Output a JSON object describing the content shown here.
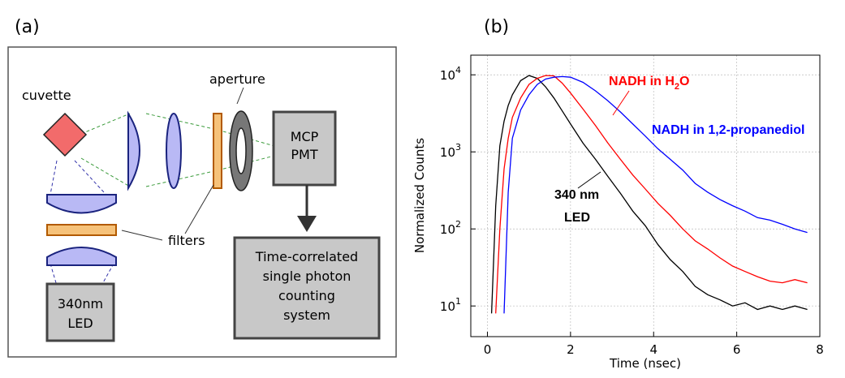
{
  "panels": [
    "(a)",
    "(b)"
  ],
  "diagram": {
    "cuvette": "cuvette",
    "aperture": "aperture",
    "filters": "filters",
    "pmt": [
      "MCP",
      "PMT"
    ],
    "led": [
      "340nm",
      "LED"
    ],
    "tcspc": [
      "Time-correlated",
      "single photon",
      "counting",
      "system"
    ]
  },
  "chart_data": {
    "type": "line",
    "y_label": "Normalized Counts",
    "x_label": "Time (nsec)",
    "log_y": true,
    "grid": true,
    "xlim": [
      -0.4,
      8
    ],
    "xticks": [
      0,
      2,
      4,
      6,
      8
    ],
    "ylim": [
      4,
      18000
    ],
    "yticks": [
      {
        "value": 10,
        "label": "10",
        "exponent": "1"
      },
      {
        "value": 100,
        "label": "10",
        "exponent": "2"
      },
      {
        "value": 1000,
        "label": "10",
        "exponent": "3"
      },
      {
        "value": 10000,
        "label": "10",
        "exponent": "4"
      }
    ],
    "x": [
      0.1,
      0.2,
      0.3,
      0.4,
      0.5,
      0.6,
      0.8,
      1.0,
      1.2,
      1.4,
      1.6,
      1.8,
      2.0,
      2.3,
      2.6,
      2.9,
      3.2,
      3.5,
      3.8,
      4.1,
      4.4,
      4.7,
      5.0,
      5.3,
      5.6,
      5.9,
      6.2,
      6.5,
      6.8,
      7.1,
      7.4,
      7.7
    ],
    "series": [
      {
        "color": "#000000",
        "values": [
          8,
          200,
          1200,
          2500,
          4000,
          5500,
          8400,
          9800,
          9000,
          7000,
          5000,
          3400,
          2300,
          1300,
          800,
          480,
          290,
          170,
          110,
          63,
          40,
          28,
          18,
          14,
          12,
          10,
          11,
          9,
          10,
          9,
          10,
          9
        ]
      },
      {
        "color": "#ff0000",
        "values": [
          null,
          8,
          100,
          600,
          1500,
          2800,
          5000,
          7500,
          9000,
          9800,
          9700,
          7800,
          5800,
          3600,
          2200,
          1300,
          800,
          500,
          330,
          215,
          150,
          100,
          70,
          55,
          42,
          33,
          28,
          24,
          21,
          20,
          22,
          20
        ]
      },
      {
        "color": "#0000ff",
        "values": [
          null,
          null,
          null,
          8,
          300,
          1500,
          3500,
          5500,
          7500,
          8800,
          9300,
          9500,
          9300,
          8000,
          6200,
          4600,
          3300,
          2300,
          1600,
          1100,
          800,
          580,
          390,
          300,
          240,
          200,
          170,
          140,
          130,
          115,
          100,
          90
        ]
      }
    ],
    "annotations": [
      {
        "text": [
          "340 nm",
          "LED"
        ]
      },
      {
        "text": [
          "NADH in H",
          "2",
          "O"
        ]
      },
      {
        "text": [
          "NADH in 1,2-propanediol"
        ]
      }
    ]
  }
}
